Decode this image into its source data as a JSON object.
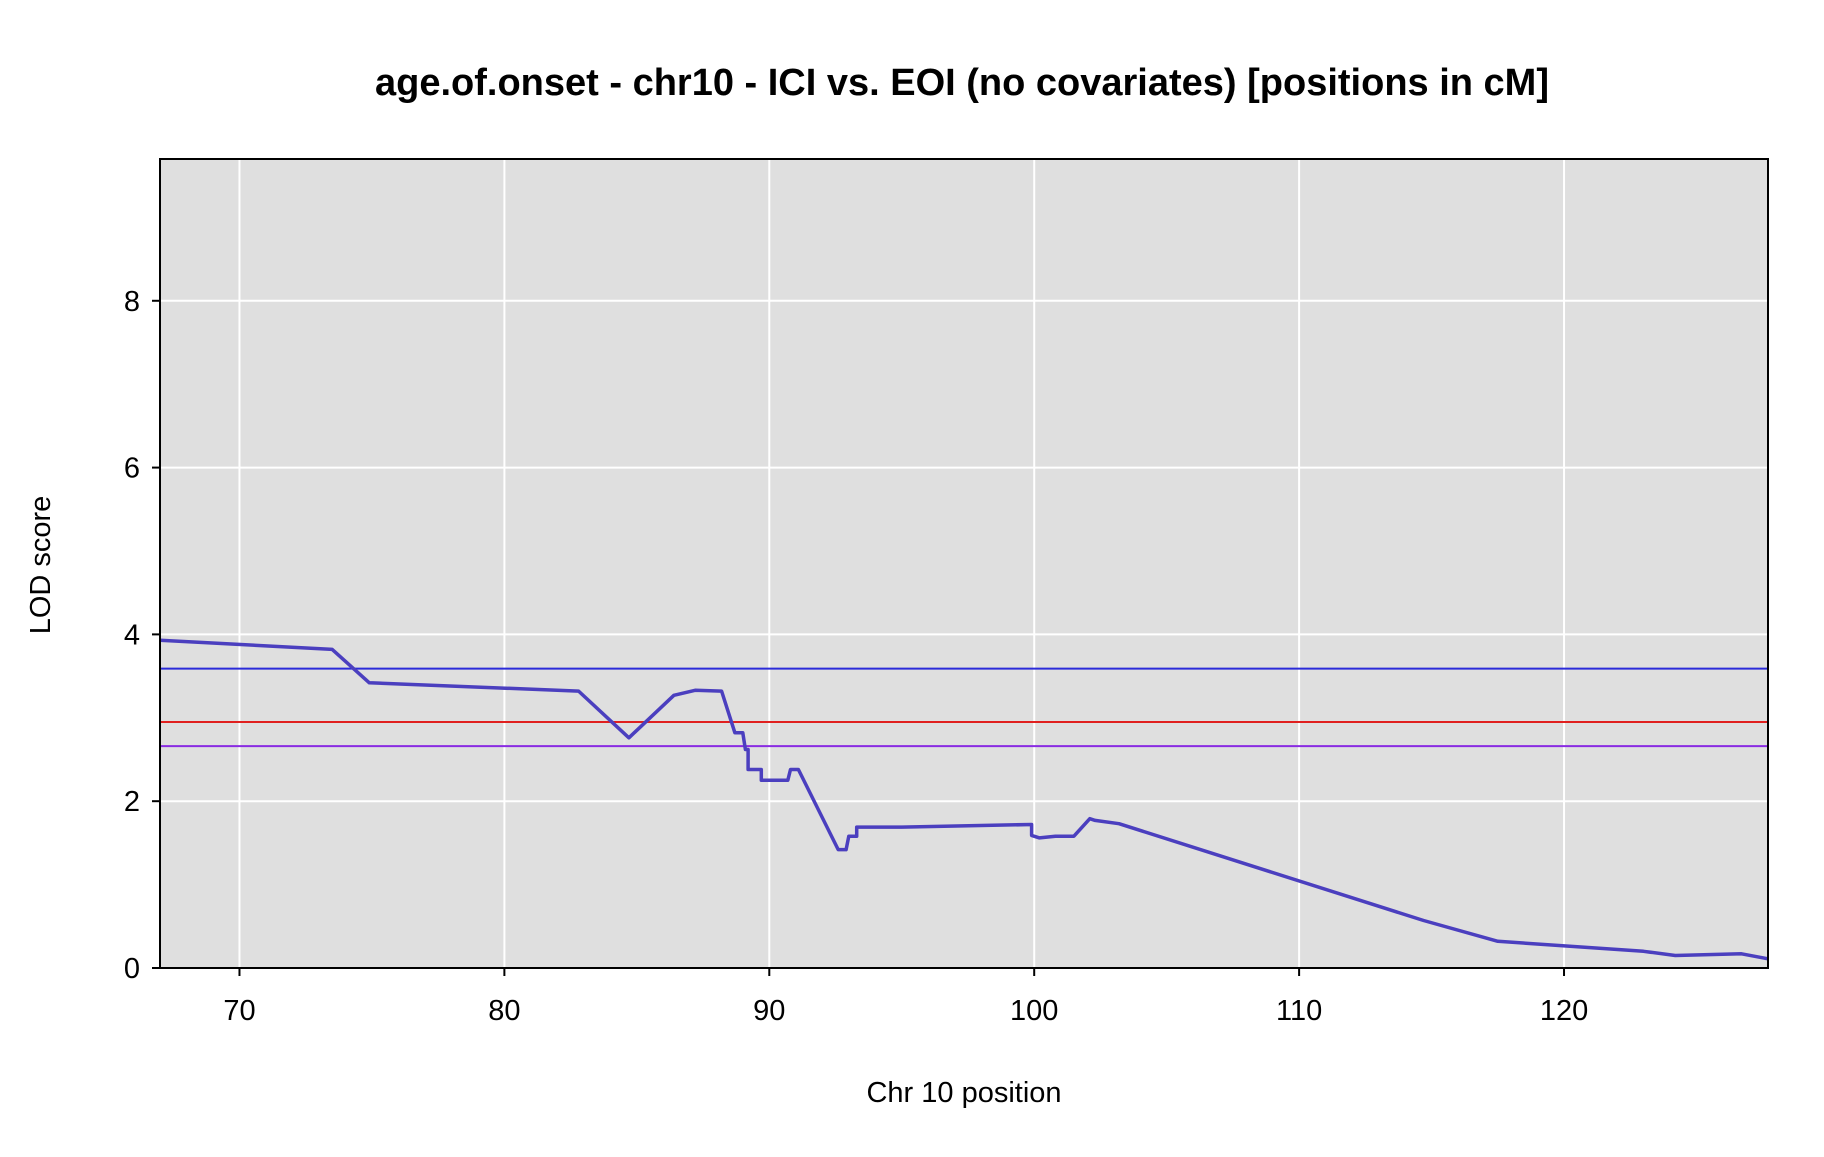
{
  "chart_data": {
    "type": "line",
    "title": "age.of.onset - chr10 - ICI vs. EOI (no covariates) [positions in cM]",
    "xlabel": "Chr 10 position",
    "ylabel": "LOD score",
    "xlim": [
      67,
      127.7
    ],
    "ylim": [
      0,
      9.7
    ],
    "xticks": [
      70,
      80,
      90,
      100,
      110,
      120
    ],
    "yticks": [
      0,
      2,
      4,
      6,
      8
    ],
    "grid": true,
    "background": "#dfdfdf",
    "series": [
      {
        "color": "#4b3fbf",
        "points": [
          [
            67.0,
            3.93
          ],
          [
            73.5,
            3.82
          ],
          [
            74.9,
            3.42
          ],
          [
            82.8,
            3.32
          ],
          [
            84.7,
            2.76
          ],
          [
            86.4,
            3.27
          ],
          [
            87.2,
            3.33
          ],
          [
            88.2,
            3.32
          ],
          [
            88.7,
            2.82
          ],
          [
            89.0,
            2.82
          ],
          [
            89.1,
            2.62
          ],
          [
            89.2,
            2.62
          ],
          [
            89.2,
            2.38
          ],
          [
            89.7,
            2.38
          ],
          [
            89.7,
            2.25
          ],
          [
            90.7,
            2.25
          ],
          [
            90.8,
            2.38
          ],
          [
            91.1,
            2.38
          ],
          [
            92.6,
            1.42
          ],
          [
            92.8,
            1.42
          ],
          [
            92.9,
            1.42
          ],
          [
            93.0,
            1.58
          ],
          [
            93.3,
            1.58
          ],
          [
            93.3,
            1.69
          ],
          [
            95.0,
            1.69
          ],
          [
            99.9,
            1.72
          ],
          [
            99.9,
            1.59
          ],
          [
            100.2,
            1.56
          ],
          [
            100.8,
            1.58
          ],
          [
            101.5,
            1.58
          ],
          [
            102.1,
            1.79
          ],
          [
            102.3,
            1.77
          ],
          [
            103.2,
            1.73
          ],
          [
            114.7,
            0.57
          ],
          [
            117.5,
            0.32
          ],
          [
            123.0,
            0.2
          ],
          [
            124.2,
            0.15
          ],
          [
            126.7,
            0.17
          ],
          [
            127.7,
            0.11
          ]
        ]
      }
    ],
    "threshold_lines": [
      {
        "y": 3.59,
        "color": "#2b2bd9"
      },
      {
        "y": 2.95,
        "color": "#e0201f"
      },
      {
        "y": 2.66,
        "color": "#8a2be2"
      }
    ]
  }
}
